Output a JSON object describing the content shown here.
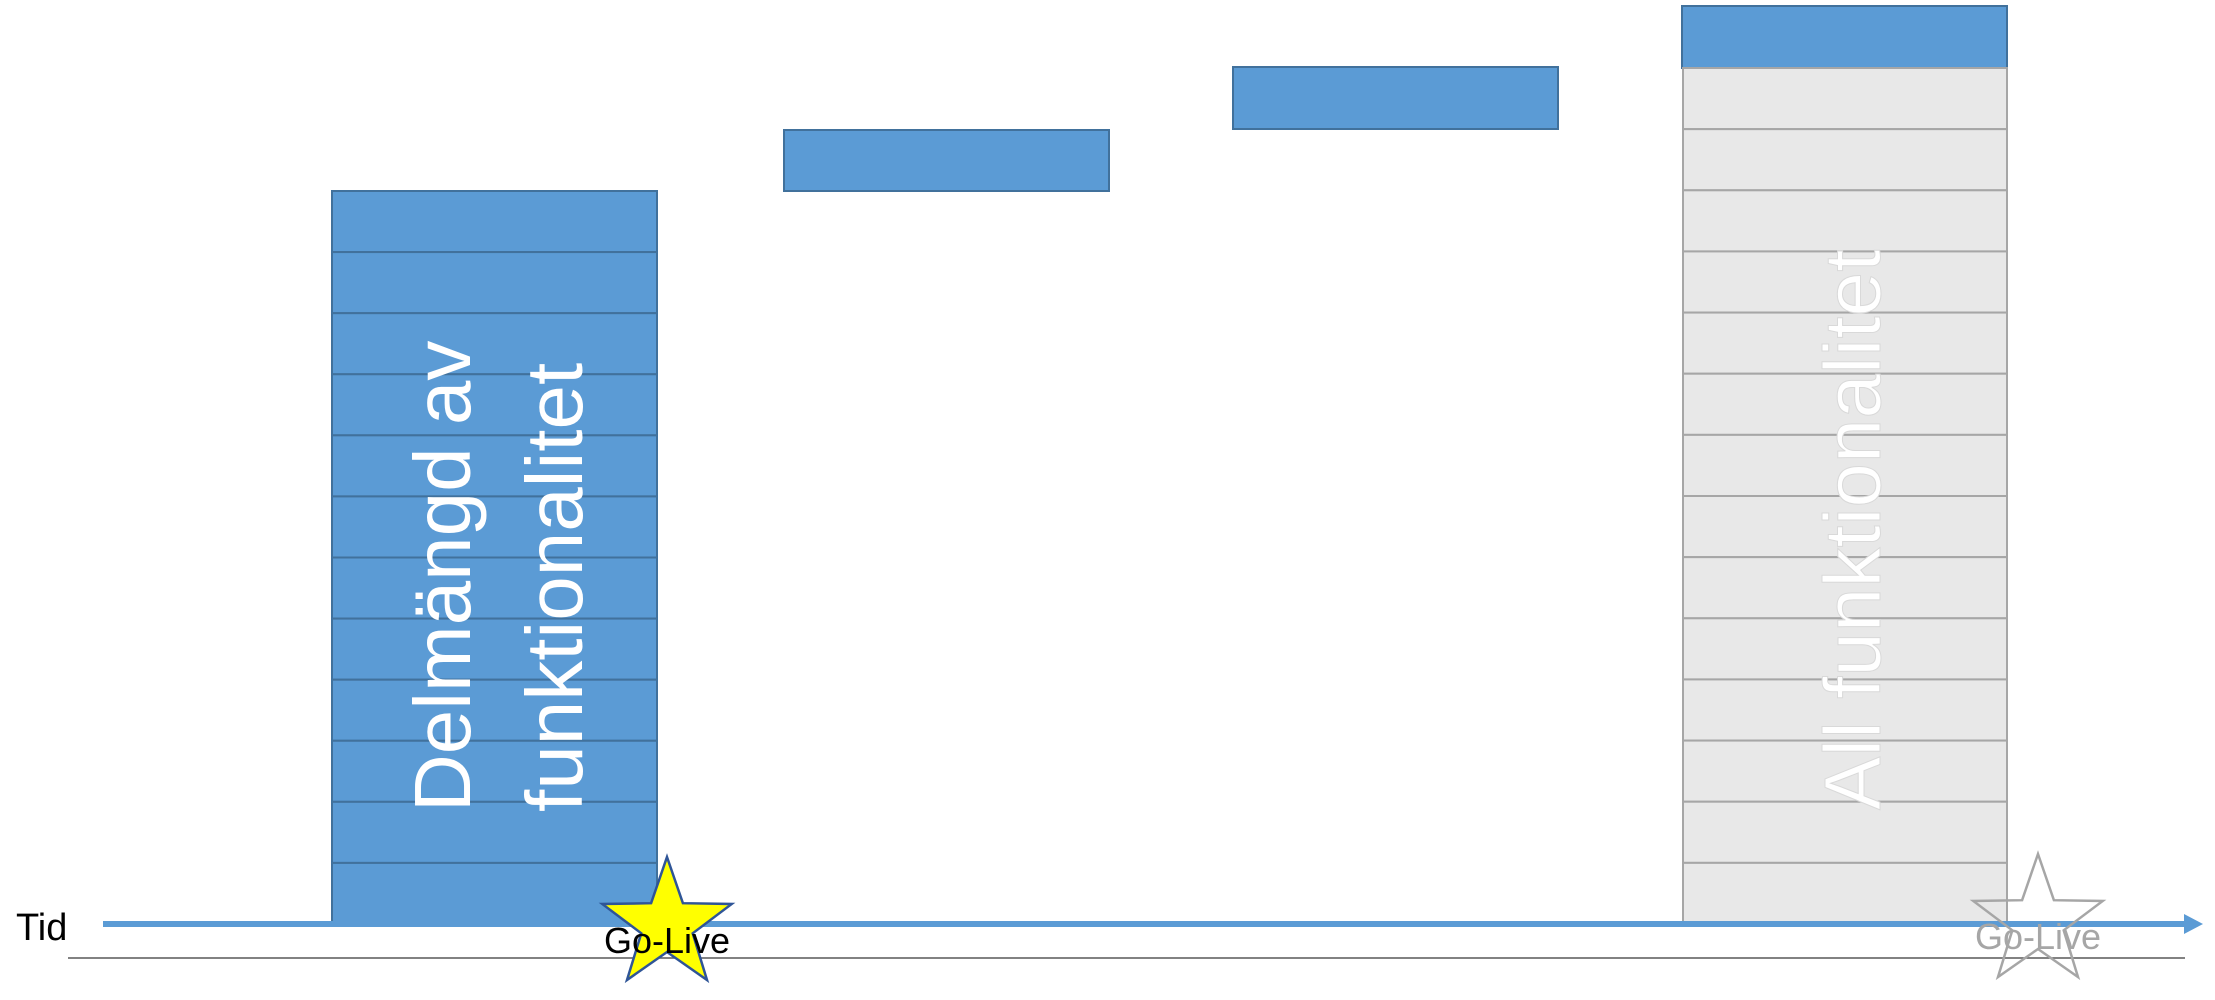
{
  "axis": {
    "label": "Tid"
  },
  "left_block": {
    "label_line1": "Delmängd av",
    "label_line2": "funktionalitet",
    "segments": 12
  },
  "right_block": {
    "label": "All funktionalitet",
    "segments": 14
  },
  "increments": 3,
  "milestones": [
    {
      "label": "Go-Live",
      "style": "filled"
    },
    {
      "label": "Go-Live",
      "style": "outline"
    }
  ],
  "colors": {
    "block_fill": "#5b9bd5",
    "block_stroke": "#41719c",
    "axis": "#5b9bd5",
    "ghost_fill": "#e8e8e8",
    "ghost_stroke": "#a6a6a6",
    "star_fill": "#ffff00",
    "star_stroke": "#2f5597",
    "ghost_star": "#a6a6a6",
    "text_white": "#ffffff",
    "text_dark": "#000000"
  }
}
